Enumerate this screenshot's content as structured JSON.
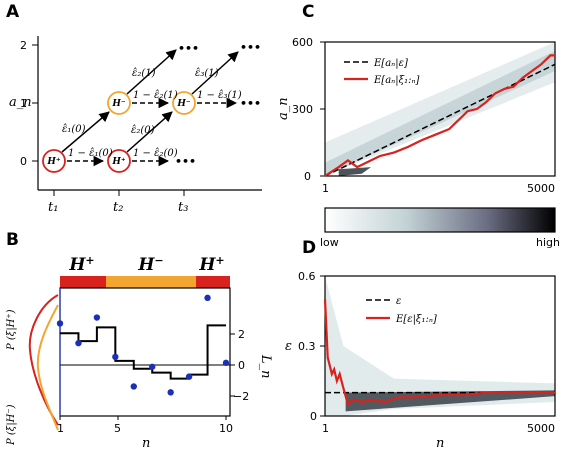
{
  "colors": {
    "accent_red": "#d8221e",
    "accent_orange": "#f2a530",
    "dots_blue": "#1b2fb8",
    "shade_dark": "#222831",
    "shade_light": "#cfdde0"
  },
  "panel_a": {
    "label": "A",
    "ylabel": "a_n",
    "yticks": [
      "0",
      "1",
      "2"
    ],
    "xticks": [
      "t₁",
      "t₂",
      "t₃"
    ],
    "nodes": [
      {
        "label": "H⁺",
        "kind": "plus"
      },
      {
        "label": "H⁻",
        "kind": "minus"
      },
      {
        "label": "H⁺",
        "kind": "plus"
      },
      {
        "label": "H⁻",
        "kind": "minus"
      }
    ],
    "edge_labels": [
      "ε̂₁(0)",
      "1 − ε̂₁(0)",
      "ε̂₂(1)",
      "1 − ε̂₂(1)",
      "ε̂₂(0)",
      "1 − ε̂₂(0)",
      "ε̂₃(1)",
      "1 − ε̂₃(1)"
    ],
    "ellipsis": "•••"
  },
  "panel_b": {
    "label": "B",
    "header_segments": [
      {
        "label": "H+",
        "state": "plus"
      },
      {
        "label": "H−",
        "state": "minus"
      },
      {
        "label": "H+",
        "state": "plus"
      }
    ],
    "left_labels": [
      "P (ξ|H⁺)",
      "P (ξ|H⁻)"
    ],
    "ylabel_right": "L_n",
    "xlabel": "n",
    "xticks": [
      "1",
      "5",
      "10"
    ],
    "yticks_right": [
      "2",
      "0",
      "−2"
    ]
  },
  "panel_c": {
    "label": "C",
    "ylabel": "a_n",
    "xticks": [
      "1",
      "5000"
    ],
    "yticks": [
      "0",
      "300",
      "600"
    ],
    "legend": [
      "E[aₙ|ε]",
      "E[aₙ|ξ₁:ₙ]"
    ],
    "colorbar_low": "low",
    "colorbar_high": "high"
  },
  "panel_d": {
    "label": "D",
    "ylabel": "ε",
    "xlabel": "n",
    "xticks": [
      "1",
      "5000"
    ],
    "yticks": [
      "0",
      "0.3",
      "0.6"
    ],
    "legend": [
      "ε",
      "E[ε|ξ₁:ₙ]"
    ]
  },
  "chart_data": [
    {
      "type": "scatter",
      "panel": "B",
      "x": [
        1,
        2,
        3,
        4,
        5,
        6,
        7,
        8,
        9,
        10
      ],
      "obs_values": [
        1.7,
        0.7,
        2.0,
        0.0,
        -1.5,
        -0.5,
        -1.8,
        -1.0,
        3.0,
        -0.3
      ],
      "llr_steps": [
        1.2,
        0.8,
        1.5,
        -0.2,
        -0.6,
        -0.8,
        -1.1,
        -0.9,
        1.6,
        1.6
      ],
      "xlim": [
        1,
        10
      ],
      "ylim": [
        -3,
        3.5
      ]
    },
    {
      "type": "line",
      "panel": "C",
      "xlim": [
        1,
        5000
      ],
      "ylim": [
        0,
        600
      ],
      "series": [
        {
          "name": "E[aₙ|ε]",
          "x": [
            1,
            5000
          ],
          "y": [
            0,
            500
          ]
        },
        {
          "name": "E[aₙ|ξ₁:ₙ]",
          "x": [
            1,
            300,
            500,
            700,
            900,
            1200,
            1500,
            1800,
            2100,
            2400,
            2700,
            2900,
            3100,
            3300,
            3500,
            3700,
            3900,
            4100,
            4300,
            4500,
            4700,
            4900,
            5000
          ],
          "y": [
            0,
            40,
            70,
            40,
            60,
            90,
            105,
            130,
            160,
            185,
            210,
            250,
            290,
            300,
            330,
            370,
            390,
            400,
            440,
            470,
            500,
            540,
            540
          ]
        }
      ]
    },
    {
      "type": "line",
      "panel": "D",
      "xlim": [
        1,
        5000
      ],
      "ylim": [
        0,
        0.6
      ],
      "series": [
        {
          "name": "ε",
          "x": [
            1,
            5000
          ],
          "y": [
            0.1,
            0.1
          ]
        },
        {
          "name": "E[ε|ξ₁:ₙ]",
          "x": [
            1,
            30,
            60,
            100,
            150,
            200,
            260,
            320,
            400,
            500,
            600,
            800,
            1000,
            1300,
            1600,
            2000,
            2500,
            3000,
            3500,
            4000,
            4500,
            5000
          ],
          "y": [
            0.5,
            0.38,
            0.25,
            0.22,
            0.18,
            0.2,
            0.15,
            0.18,
            0.12,
            0.05,
            0.07,
            0.06,
            0.07,
            0.06,
            0.08,
            0.08,
            0.09,
            0.09,
            0.1,
            0.1,
            0.1,
            0.1
          ]
        }
      ]
    }
  ]
}
